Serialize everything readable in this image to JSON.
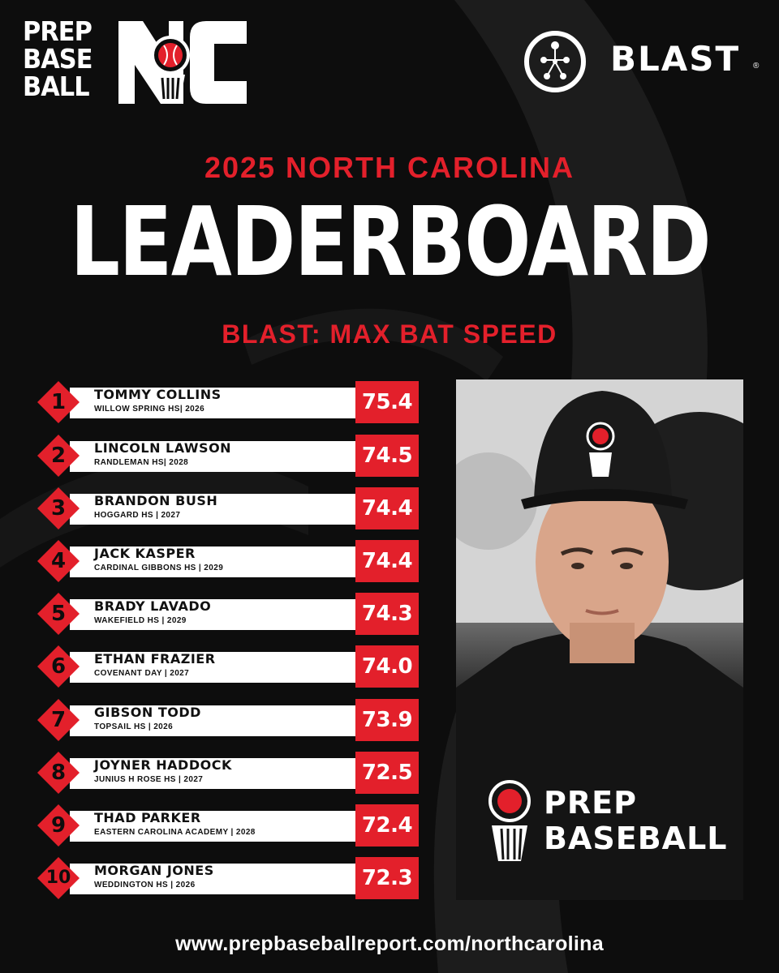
{
  "brand": {
    "pbr_lines": [
      "PREP",
      "BASE",
      "BALL"
    ],
    "state_mark": "NC",
    "sponsor": "BLAST",
    "sponsor_reg": "®"
  },
  "header": {
    "subtitle_top": "2025 NORTH CAROLINA",
    "title": "LEADERBOARD",
    "metric": "BLAST: MAX BAT SPEED"
  },
  "leaderboard": [
    {
      "rank": "1",
      "name": "TOMMY COLLINS",
      "school": "WILLOW SPRING HS| 2026",
      "score": "75.4"
    },
    {
      "rank": "2",
      "name": "LINCOLN LAWSON",
      "school": "RANDLEMAN HS| 2028",
      "score": "74.5"
    },
    {
      "rank": "3",
      "name": "BRANDON BUSH",
      "school": "HOGGARD HS | 2027",
      "score": "74.4"
    },
    {
      "rank": "4",
      "name": "JACK KASPER",
      "school": "CARDINAL GIBBONS HS | 2029",
      "score": "74.4"
    },
    {
      "rank": "5",
      "name": "BRADY LAVADO",
      "school": "WAKEFIELD HS | 2029",
      "score": "74.3"
    },
    {
      "rank": "6",
      "name": "ETHAN FRAZIER",
      "school": "COVENANT DAY | 2027",
      "score": "74.0"
    },
    {
      "rank": "7",
      "name": "GIBSON TODD",
      "school": "TOPSAIL HS | 2026",
      "score": "73.9"
    },
    {
      "rank": "8",
      "name": "JOYNER HADDOCK",
      "school": "JUNIUS H ROSE HS | 2027",
      "score": "72.5"
    },
    {
      "rank": "9",
      "name": "THAD PARKER",
      "school": "EASTERN CAROLINA ACADEMY | 2028",
      "score": "72.4"
    },
    {
      "rank": "10",
      "name": "MORGAN JONES",
      "school": "WEDDINGTON HS | 2026",
      "score": "72.3"
    }
  ],
  "photo": {
    "shirt_lines": [
      "PREP",
      "BASEBALL"
    ]
  },
  "footer": {
    "url": "www.prepbaseballreport.com/northcarolina"
  },
  "colors": {
    "background": "#0d0d0d",
    "accent_red": "#e3202b",
    "text_white": "#ffffff"
  }
}
